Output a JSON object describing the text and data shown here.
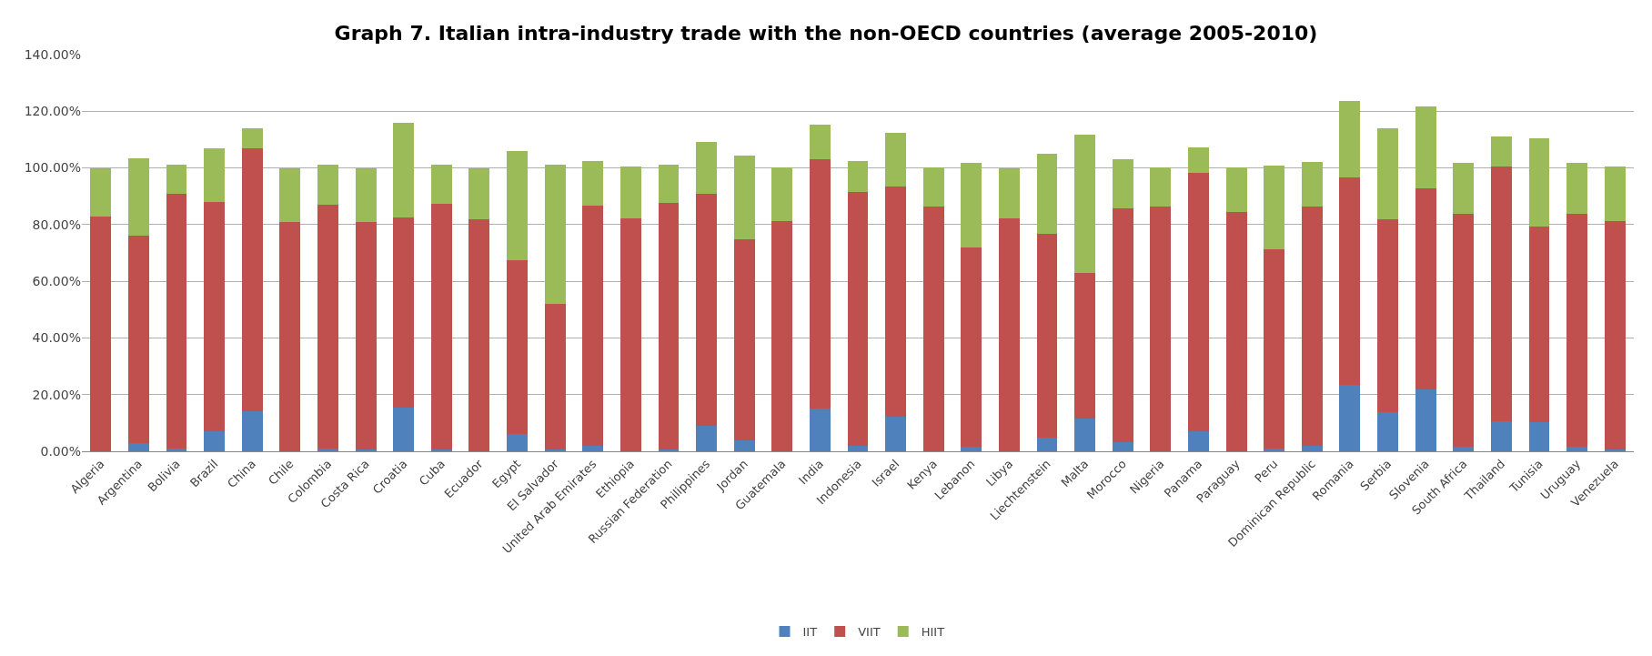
{
  "chart_data": {
    "type": "bar",
    "stacked": true,
    "title": "Graph 7. Italian intra-industry trade with the non-OECD countries (average 2005-2010)",
    "categories": [
      "Algeria",
      "Argentina",
      "Bolivia",
      "Brazil",
      "China",
      "Chile",
      "Colombia",
      "Costa Rica",
      "Croatia",
      "Cuba",
      "Ecuador",
      "Egypt",
      "El Salvador",
      "United Arab Emirates",
      "Ethiopia",
      "Russian Federation",
      "Philippines",
      "Jordan",
      "Guatemala",
      "India",
      "Indonesia",
      "Israel",
      "Kenya",
      "Lebanon",
      "Libya",
      "Liechtenstein",
      "Malta",
      "Morocco",
      "Nigeria",
      "Panama",
      "Paraguay",
      "Peru",
      "Dominican Republic",
      "Romania",
      "Serbia",
      "Slovenia",
      "South Africa",
      "Thailand",
      "Tunisia",
      "Uruguay",
      "Venezuela"
    ],
    "series": [
      {
        "name": "IIT",
        "color": "#4f81bd",
        "values": [
          0,
          3,
          1,
          7,
          14,
          0,
          1,
          0.5,
          15.5,
          0.5,
          0,
          6,
          0.7,
          2,
          null,
          0.7,
          9,
          4,
          null,
          15,
          2,
          12.2,
          null,
          1.5,
          0,
          4.7,
          11.7,
          3.3,
          0,
          7,
          0,
          0.9,
          1.9,
          23.5,
          13.9,
          21.8,
          1.5,
          10.7,
          10.4,
          1.5,
          0.6
        ]
      },
      {
        "name": "VIIT",
        "color": "#c0504d",
        "values": [
          83,
          73,
          90,
          81,
          93,
          81,
          86,
          80.5,
          67,
          87,
          82,
          61.5,
          51.3,
          84.8,
          82.3,
          86.9,
          81.8,
          70.7,
          81.4,
          88.2,
          89.5,
          81.1,
          86.4,
          70.5,
          82.3,
          72.2,
          51.3,
          82.5,
          86.5,
          91.3,
          84.6,
          70.4,
          84.6,
          73.2,
          68,
          70.9,
          82.4,
          89.9,
          69,
          82.4,
          80.5
        ]
      },
      {
        "name": "HIIT",
        "color": "#9bbb59",
        "values": [
          17,
          27.5,
          10,
          19,
          7,
          19,
          14,
          19,
          33.5,
          13.5,
          18,
          38.5,
          49,
          15.7,
          18.1,
          13.4,
          18.4,
          29.5,
          18.9,
          12,
          11,
          19.1,
          13.9,
          29.8,
          17.6,
          28.1,
          48.7,
          17.2,
          13.6,
          8.8,
          15.5,
          29.6,
          15.5,
          27,
          32.2,
          29.1,
          17.8,
          10.4,
          31.2,
          17.8,
          19.5
        ]
      }
    ],
    "ylim": [
      0,
      140
    ],
    "yticks": [
      {
        "value": 0,
        "label": "0.00%"
      },
      {
        "value": 20,
        "label": "20.00%"
      },
      {
        "value": 40,
        "label": "40.00%"
      },
      {
        "value": 60,
        "label": "60.00%"
      },
      {
        "value": 80,
        "label": "80.00%"
      },
      {
        "value": 100,
        "label": "100.00%"
      },
      {
        "value": 120,
        "label": "120.00%"
      },
      {
        "value": 140,
        "label": "140.00%"
      }
    ],
    "grid": "y",
    "legend": "bottom"
  }
}
